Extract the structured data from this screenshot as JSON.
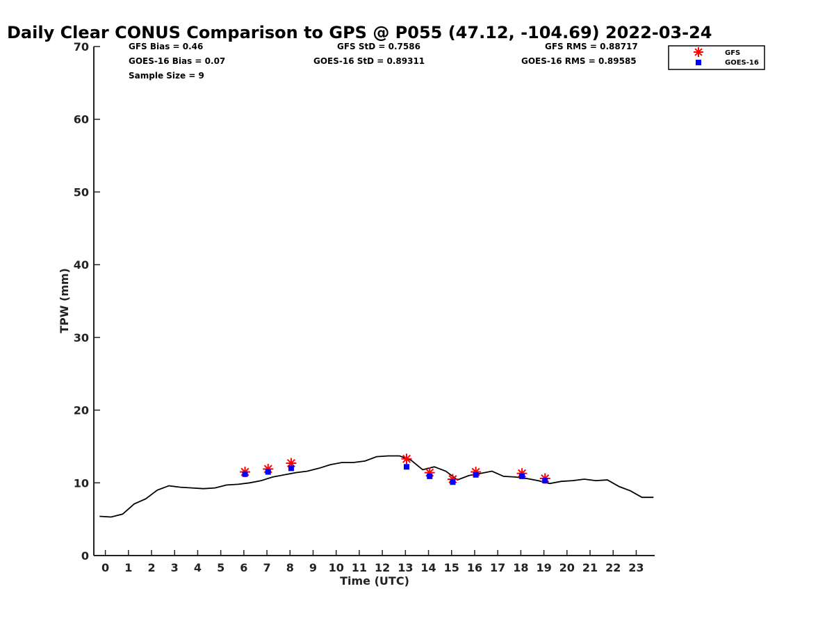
{
  "chart_data": {
    "type": "scatter",
    "title": "Daily Clear CONUS Comparison to GPS @ P055 (47.12, -104.69) 2022-03-24",
    "xlabel": "Time (UTC)",
    "ylabel": "TPW (mm)",
    "xlim": [
      -0.5,
      23.8
    ],
    "ylim": [
      0,
      70
    ],
    "x_ticks": [
      "0",
      "1",
      "2",
      "3",
      "4",
      "5",
      "6",
      "7",
      "8",
      "9",
      "10",
      "11",
      "12",
      "13",
      "14",
      "15",
      "16",
      "17",
      "18",
      "19",
      "20",
      "21",
      "22",
      "23"
    ],
    "y_ticks": [
      "0",
      "10",
      "20",
      "30",
      "40",
      "50",
      "60",
      "70"
    ],
    "stats": {
      "gfs_bias": "GFS Bias = 0.46",
      "goes_bias": "GOES-16 Bias = 0.07",
      "sample_size": "Sample Size = 9",
      "gfs_std": "GFS StD = 0.7586",
      "goes_std": "GOES-16 StD = 0.89311",
      "gfs_rms": "GFS RMS = 0.88717",
      "goes_rms": "GOES-16 RMS = 0.89585"
    },
    "legend": {
      "placement": "top-right",
      "gfs": "GFS",
      "goes": "GOES-16"
    },
    "colors": {
      "gfs": "#ff0000",
      "goes": "#0000ff",
      "gps": "#000000"
    },
    "gps_line": {
      "x": [
        -0.25,
        0.25,
        0.75,
        1.25,
        1.75,
        2.25,
        2.75,
        3.25,
        3.75,
        4.25,
        4.75,
        5.25,
        5.75,
        6.25,
        6.75,
        7.25,
        7.75,
        8.25,
        8.75,
        9.25,
        9.75,
        10.25,
        10.75,
        11.25,
        11.75,
        12.25,
        12.75,
        13.25,
        13.75,
        14.25,
        14.75,
        15.25,
        15.75,
        16.25,
        16.75,
        17.25,
        17.75,
        18.25,
        18.75,
        19.25,
        19.75,
        20.25,
        20.75,
        21.25,
        21.75,
        22.25,
        22.75,
        23.25,
        23.75
      ],
      "y": [
        5.4,
        5.3,
        5.7,
        7.1,
        7.8,
        9.0,
        9.6,
        9.4,
        9.3,
        9.2,
        9.3,
        9.7,
        9.8,
        10.0,
        10.3,
        10.8,
        11.1,
        11.4,
        11.6,
        12.0,
        12.5,
        12.8,
        12.8,
        13.0,
        13.6,
        13.7,
        13.7,
        13.1,
        11.8,
        12.2,
        11.6,
        10.4,
        11.0,
        11.3,
        11.6,
        10.9,
        10.8,
        10.6,
        10.3,
        9.9,
        10.2,
        10.3,
        10.5,
        10.3,
        10.4,
        9.5,
        8.9,
        8.0,
        8.0
      ]
    },
    "series": [
      {
        "name": "GFS",
        "marker": "asterisk",
        "x": [
          6.05,
          7.05,
          8.05,
          13.05,
          14.05,
          15.05,
          16.05,
          18.05,
          19.05
        ],
        "y": [
          11.5,
          11.9,
          12.7,
          13.3,
          11.4,
          10.5,
          11.5,
          11.3,
          10.6
        ]
      },
      {
        "name": "GOES-16",
        "marker": "square",
        "x": [
          6.05,
          7.05,
          8.05,
          13.05,
          14.05,
          15.05,
          16.05,
          18.05,
          19.05
        ],
        "y": [
          11.2,
          11.5,
          12.0,
          12.2,
          10.9,
          10.1,
          11.1,
          10.9,
          10.3
        ]
      }
    ]
  }
}
